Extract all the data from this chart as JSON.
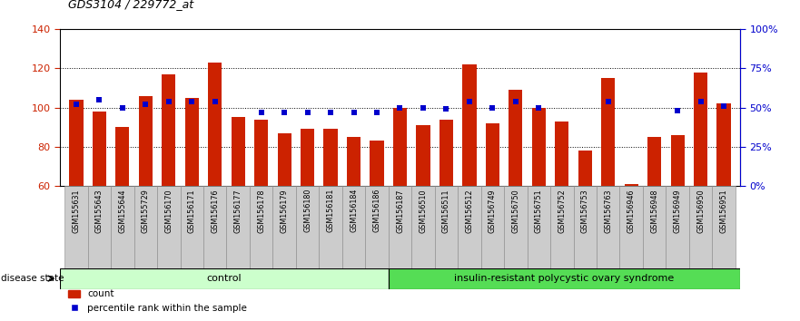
{
  "title": "GDS3104 / 229772_at",
  "samples": [
    "GSM155631",
    "GSM155643",
    "GSM155644",
    "GSM155729",
    "GSM156170",
    "GSM156171",
    "GSM156176",
    "GSM156177",
    "GSM156178",
    "GSM156179",
    "GSM156180",
    "GSM156181",
    "GSM156184",
    "GSM156186",
    "GSM156187",
    "GSM156510",
    "GSM156511",
    "GSM156512",
    "GSM156749",
    "GSM156750",
    "GSM156751",
    "GSM156752",
    "GSM156753",
    "GSM156763",
    "GSM156946",
    "GSM156948",
    "GSM156949",
    "GSM156950",
    "GSM156951"
  ],
  "bar_values": [
    104,
    98,
    90,
    106,
    117,
    105,
    123,
    95,
    94,
    87,
    89,
    89,
    85,
    83,
    100,
    91,
    94,
    122,
    92,
    109,
    100,
    93,
    78,
    115,
    61,
    85,
    86,
    118,
    102
  ],
  "percentile_values": [
    52,
    55,
    50,
    52,
    54,
    54,
    54,
    null,
    47,
    47,
    47,
    47,
    47,
    47,
    50,
    50,
    49,
    54,
    50,
    54,
    50,
    null,
    null,
    54,
    null,
    null,
    48,
    54,
    51
  ],
  "control_count": 14,
  "disease_count": 15,
  "ylim_left": [
    60,
    140
  ],
  "ylim_right": [
    0,
    100
  ],
  "yticks_left": [
    60,
    80,
    100,
    120,
    140
  ],
  "yticks_right": [
    0,
    25,
    50,
    75,
    100
  ],
  "ytick_right_labels": [
    "0%",
    "25%",
    "50%",
    "75%",
    "100%"
  ],
  "bar_color": "#CC2200",
  "dot_color": "#0000CC",
  "bg_color": "#FFFFFF",
  "control_bg": "#CCFFCC",
  "disease_bg": "#55DD55",
  "xlabel_color": "#CC2200",
  "right_axis_color": "#0000CC",
  "bar_width": 0.6,
  "label_box_color": "#CCCCCC"
}
